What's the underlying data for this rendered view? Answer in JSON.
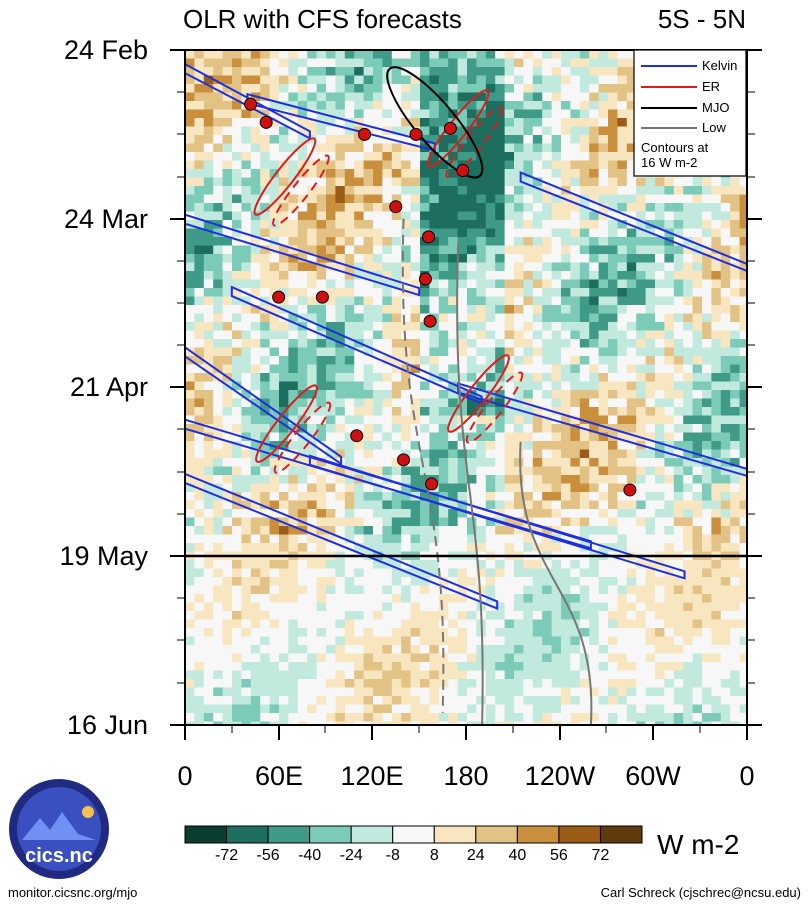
{
  "header": {
    "title": "OLR with CFS forecasts",
    "region": "5S - 5N"
  },
  "legend": {
    "entries": [
      {
        "label": "Kelvin",
        "color": "#1f2fe0"
      },
      {
        "label": "ER",
        "color": "#e01b1b"
      },
      {
        "label": "MJO",
        "color": "#000000"
      },
      {
        "label": "Low",
        "color": "#777777"
      }
    ],
    "note_line1": "Contours at",
    "note_line2": "16 W m-2"
  },
  "colorbar": {
    "unit": "W m-2",
    "ticks": [
      "-72",
      "-56",
      "-40",
      "-24",
      "-8",
      "8",
      "24",
      "40",
      "56",
      "72"
    ],
    "colors": [
      "#0b3d30",
      "#1d6e5e",
      "#3f9a88",
      "#7ccbb9",
      "#c1e9dd",
      "#f7f7f7",
      "#f7e6bf",
      "#e3c285",
      "#c98f3d",
      "#9a5c16",
      "#5e3a0d"
    ]
  },
  "footer": {
    "left": "monitor.cicsnc.org/mjo",
    "right": "Carl Schreck (cjschrec@ncsu.edu)"
  },
  "logo": {
    "label": "cics.nc"
  },
  "chart_data": {
    "type": "heatmap",
    "title": "OLR with CFS forecasts",
    "subtitle": "5S - 5N",
    "x_ticks": [
      "0",
      "60E",
      "120E",
      "180",
      "120W",
      "60W",
      "0"
    ],
    "x_range_deg": [
      0,
      360
    ],
    "y_ticks": [
      "24 Feb",
      "24 Mar",
      "21 Apr",
      "19 May",
      "16 Jun"
    ],
    "y_range_days": [
      0,
      112
    ],
    "forecast_start": "19 May",
    "legend": [
      "Kelvin",
      "ER",
      "MJO",
      "Low"
    ],
    "legend_placement": "top-right",
    "colorbar_unit": "W m-2",
    "kelvin_bands": [
      {
        "lon": [
          0,
          80
        ],
        "day": [
          3,
          14
        ]
      },
      {
        "lon": [
          40,
          160
        ],
        "day": [
          8,
          16
        ]
      },
      {
        "lon": [
          0,
          150
        ],
        "day": [
          28,
          40
        ]
      },
      {
        "lon": [
          30,
          190
        ],
        "day": [
          40,
          58
        ]
      },
      {
        "lon": [
          0,
          100
        ],
        "day": [
          50,
          68
        ]
      },
      {
        "lon": [
          0,
          260
        ],
        "day": [
          62,
          82
        ]
      },
      {
        "lon": [
          0,
          200
        ],
        "day": [
          71,
          92
        ]
      },
      {
        "lon": [
          80,
          320
        ],
        "day": [
          68,
          87
        ]
      },
      {
        "lon": [
          175,
          360
        ],
        "day": [
          56,
          70
        ]
      },
      {
        "lon": [
          215,
          360
        ],
        "day": [
          21,
          36
        ]
      }
    ],
    "er_ellipses": [
      {
        "lon": 175,
        "day": 13
      },
      {
        "lon": 64,
        "day": 21
      },
      {
        "lon": 188,
        "day": 57
      },
      {
        "lon": 65,
        "day": 62
      }
    ],
    "mjo_ellipse": {
      "lon": 160,
      "day": 12
    },
    "low_tracks": [
      {
        "lon": [
          140,
          165
        ],
        "day": [
          28,
          110
        ]
      },
      {
        "lon": [
          175,
          190
        ],
        "day": [
          32,
          115
        ]
      },
      {
        "lon": [
          215,
          260
        ],
        "day": [
          65,
          112
        ]
      }
    ],
    "tropical_cyclones": [
      {
        "lon": 42,
        "day": 9
      },
      {
        "lon": 52,
        "day": 12
      },
      {
        "lon": 115,
        "day": 14
      },
      {
        "lon": 148,
        "day": 14
      },
      {
        "lon": 170,
        "day": 13
      },
      {
        "lon": 135,
        "day": 26
      },
      {
        "lon": 156,
        "day": 31
      },
      {
        "lon": 154,
        "day": 38
      },
      {
        "lon": 60,
        "day": 41
      },
      {
        "lon": 88,
        "day": 41
      },
      {
        "lon": 157,
        "day": 45
      },
      {
        "lon": 110,
        "day": 64
      },
      {
        "lon": 140,
        "day": 68
      },
      {
        "lon": 158,
        "day": 72
      },
      {
        "lon": 285,
        "day": 73
      },
      {
        "lon": 178,
        "day": 20
      }
    ]
  }
}
